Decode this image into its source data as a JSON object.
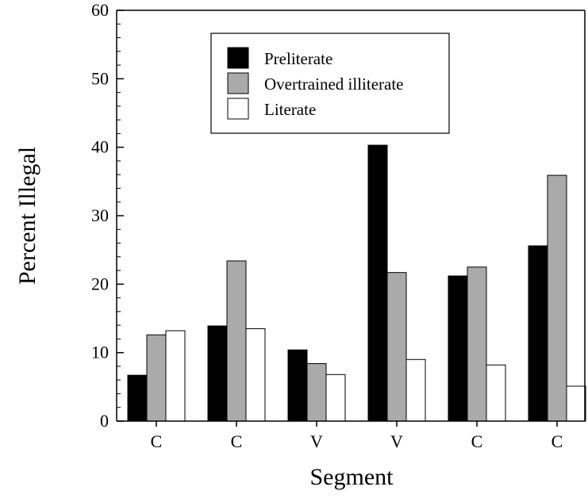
{
  "chart_data": {
    "type": "bar",
    "title": "",
    "xlabel": "Segment",
    "ylabel": "Percent Illegal",
    "ylim": [
      0,
      60
    ],
    "yticks": [
      "0",
      "10",
      "20",
      "30",
      "40",
      "50",
      "60"
    ],
    "categories": [
      "C",
      "C",
      "V",
      "V",
      "C",
      "C"
    ],
    "series": [
      {
        "name": "Preliterate",
        "color": "#000000",
        "values": [
          6.7,
          13.9,
          10.4,
          40.3,
          21.2,
          25.6
        ]
      },
      {
        "name": "Overtrained illiterate",
        "color": "#aaaaaa",
        "values": [
          12.6,
          23.4,
          8.4,
          21.7,
          22.5,
          35.9
        ]
      },
      {
        "name": "Literate",
        "color": "#ffffff",
        "values": [
          13.2,
          13.5,
          6.8,
          9.0,
          8.2,
          5.1
        ]
      }
    ],
    "legend_position": "top-center",
    "grid": false
  }
}
